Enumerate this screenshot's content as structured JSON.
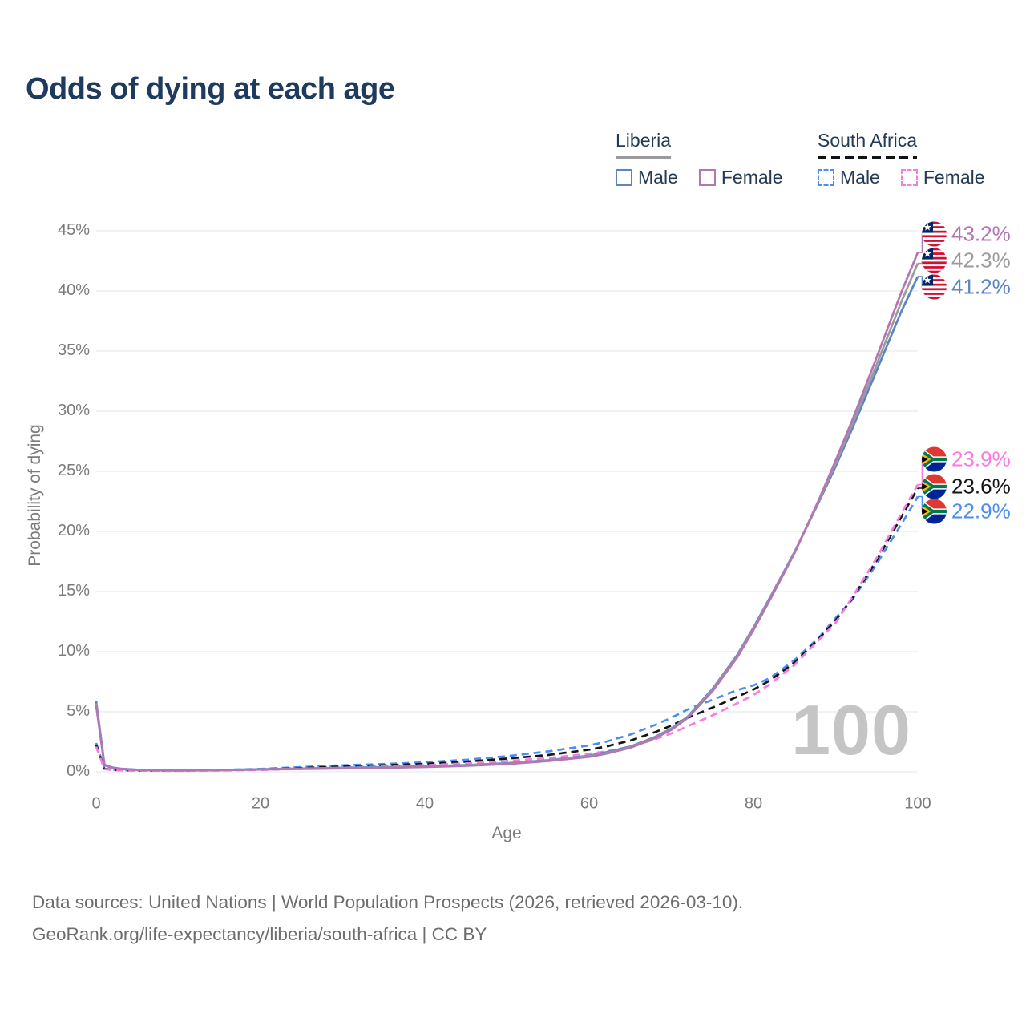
{
  "header": {
    "title": "Odds of dying at each age"
  },
  "legend": {
    "liberia": {
      "label": "Liberia",
      "male": "Male",
      "female": "Female"
    },
    "south_africa": {
      "label": "South Africa",
      "male": "Male",
      "female": "Female"
    }
  },
  "watermark": "100",
  "footer": {
    "line1": "Data sources: United Nations | World Population Prospects (2026, retrieved 2026-03-10).",
    "line2": "GeoRank.org/life-expectancy/liberia/south-africa | CC BY"
  },
  "chart_data": {
    "type": "line",
    "title": "Odds of dying at each age",
    "xlabel": "Age",
    "ylabel": "Probability of dying",
    "xlim": [
      0,
      100
    ],
    "ylim_percent": [
      0,
      45
    ],
    "grid": "horizontal",
    "legend_position": "top-right",
    "x_tick_values": [
      0,
      20,
      40,
      60,
      80,
      100
    ],
    "x_tick_labels": [
      "0",
      "20",
      "40",
      "60",
      "80",
      "100"
    ],
    "y_tick_values": [
      0,
      5,
      10,
      15,
      20,
      25,
      30,
      35,
      40,
      45
    ],
    "y_tick_labels": [
      "0%",
      "5%",
      "10%",
      "15%",
      "20%",
      "25%",
      "30%",
      "35%",
      "40%",
      "45%"
    ],
    "ages": [
      0,
      1,
      2,
      3,
      5,
      8,
      10,
      15,
      20,
      25,
      30,
      35,
      40,
      45,
      50,
      55,
      60,
      62,
      65,
      68,
      70,
      72,
      75,
      78,
      80,
      82,
      85,
      88,
      90,
      92,
      95,
      98,
      100
    ],
    "series": [
      {
        "name": "Liberia Female",
        "country": "Liberia",
        "sex": "Female",
        "style": "solid",
        "color": "#b475b4",
        "flag": "liberia",
        "end_label": "43.2%",
        "values": [
          5.5,
          0.55,
          0.32,
          0.23,
          0.16,
          0.12,
          0.11,
          0.14,
          0.19,
          0.24,
          0.28,
          0.33,
          0.4,
          0.5,
          0.65,
          0.9,
          1.25,
          1.5,
          2.0,
          2.8,
          3.5,
          4.5,
          6.7,
          9.5,
          11.8,
          14.3,
          18.2,
          22.7,
          25.9,
          29.2,
          34.5,
          39.9,
          43.2
        ]
      },
      {
        "name": "Liberia All",
        "country": "Liberia",
        "sex": "All",
        "style": "solid",
        "color": "#9b9b9b",
        "flag": "liberia",
        "end_label": "42.3%",
        "values": [
          5.7,
          0.58,
          0.34,
          0.24,
          0.17,
          0.13,
          0.12,
          0.15,
          0.2,
          0.26,
          0.31,
          0.36,
          0.43,
          0.53,
          0.68,
          0.93,
          1.3,
          1.55,
          2.05,
          2.85,
          3.55,
          4.55,
          6.8,
          9.6,
          11.9,
          14.4,
          18.25,
          22.6,
          25.65,
          28.85,
          33.9,
          39.1,
          42.3
        ]
      },
      {
        "name": "Liberia Male",
        "country": "Liberia",
        "sex": "Male",
        "style": "solid",
        "color": "#5b84c4",
        "flag": "liberia",
        "end_label": "41.2%",
        "values": [
          5.9,
          0.6,
          0.36,
          0.26,
          0.18,
          0.14,
          0.13,
          0.16,
          0.22,
          0.28,
          0.34,
          0.39,
          0.46,
          0.56,
          0.72,
          0.97,
          1.35,
          1.62,
          2.1,
          2.9,
          3.6,
          4.6,
          6.9,
          9.7,
          12.0,
          14.5,
          18.3,
          22.5,
          25.4,
          28.5,
          33.4,
          38.3,
          41.2
        ]
      },
      {
        "name": "South Africa Female",
        "country": "South Africa",
        "sex": "Female",
        "style": "dashed",
        "color": "#f97ae3",
        "flag": "south-africa",
        "end_label": "23.9%",
        "values": [
          2.1,
          0.22,
          0.15,
          0.12,
          0.1,
          0.08,
          0.08,
          0.11,
          0.16,
          0.24,
          0.35,
          0.45,
          0.55,
          0.7,
          0.9,
          1.15,
          1.5,
          1.7,
          2.1,
          2.7,
          3.2,
          3.8,
          4.7,
          5.7,
          6.4,
          7.3,
          8.9,
          11.0,
          12.4,
          14.5,
          17.8,
          21.5,
          23.9
        ]
      },
      {
        "name": "South Africa All",
        "country": "South Africa",
        "sex": "All",
        "style": "dashed",
        "color": "#151515",
        "flag": "south-africa",
        "end_label": "23.6%",
        "values": [
          2.25,
          0.24,
          0.16,
          0.13,
          0.11,
          0.09,
          0.09,
          0.13,
          0.2,
          0.32,
          0.45,
          0.55,
          0.67,
          0.85,
          1.1,
          1.4,
          1.85,
          2.1,
          2.6,
          3.3,
          3.85,
          4.5,
          5.35,
          6.25,
          6.85,
          7.6,
          9.1,
          11.1,
          12.6,
          14.4,
          17.6,
          21.2,
          23.6
        ]
      },
      {
        "name": "South Africa Male",
        "country": "South Africa",
        "sex": "Male",
        "style": "dashed",
        "color": "#4a8ef0",
        "flag": "south-africa",
        "end_label": "22.9%",
        "values": [
          2.4,
          0.25,
          0.18,
          0.15,
          0.12,
          0.1,
          0.1,
          0.15,
          0.25,
          0.4,
          0.55,
          0.65,
          0.8,
          1.0,
          1.3,
          1.7,
          2.2,
          2.5,
          3.1,
          3.9,
          4.5,
          5.2,
          6.0,
          6.8,
          7.2,
          7.8,
          9.3,
          11.2,
          12.8,
          14.3,
          17.3,
          20.6,
          22.9
        ]
      }
    ]
  }
}
